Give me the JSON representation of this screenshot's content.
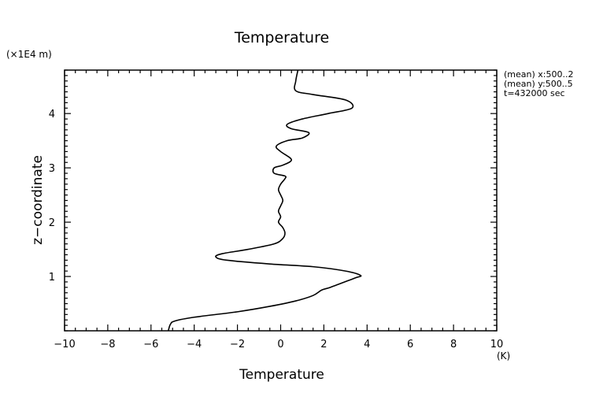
{
  "chart_data": {
    "type": "line",
    "title": "Temperature",
    "xlabel": "Temperature",
    "xunit": "(K)",
    "ylabel": "z−coordinate",
    "yunit": "(×1E4 m)",
    "xlim": [
      -10,
      10
    ],
    "ylim": [
      0,
      4.8
    ],
    "x_ticks": [
      -10,
      -8,
      -6,
      -4,
      -2,
      0,
      2,
      4,
      6,
      8,
      10
    ],
    "x_tick_labels": [
      "−10",
      "−8",
      "−6",
      "−4",
      "−2",
      "0",
      "2",
      "4",
      "6",
      "8",
      "10"
    ],
    "y_ticks": [
      1,
      2,
      3,
      4
    ],
    "y_tick_labels": [
      "1",
      "2",
      "3",
      "4"
    ],
    "grid": false,
    "annotations": [
      "(mean) x:500..2",
      "(mean) y:500..5",
      "t=432000 sec"
    ],
    "series": [
      {
        "x": [
          -5.2,
          -5.1,
          -4.9,
          -4.0,
          -2.0,
          -0.5,
          0.7,
          1.5,
          1.9,
          2.3,
          3.1,
          3.5,
          3.7,
          3.0,
          1.5,
          -0.5,
          -2.5,
          -3.0,
          -2.7,
          -1.5,
          -0.3,
          0.1,
          0.2,
          0.1,
          -0.1,
          0.0,
          -0.1,
          0.0,
          0.1,
          0.0,
          -0.1,
          0.0,
          0.2,
          0.2,
          -0.3,
          -0.3,
          0.1,
          0.5,
          0.0,
          -0.2,
          0.3,
          1.0,
          1.3,
          0.5,
          0.3,
          1.0,
          2.2,
          3.3,
          3.0,
          1.5,
          0.7,
          0.7,
          0.8
        ],
        "y": [
          0.0,
          0.12,
          0.18,
          0.25,
          0.35,
          0.45,
          0.55,
          0.65,
          0.75,
          0.8,
          0.92,
          0.98,
          1.02,
          1.1,
          1.18,
          1.23,
          1.3,
          1.36,
          1.42,
          1.5,
          1.6,
          1.7,
          1.8,
          1.9,
          2.0,
          2.1,
          2.2,
          2.3,
          2.4,
          2.5,
          2.6,
          2.7,
          2.8,
          2.85,
          2.9,
          3.0,
          3.05,
          3.15,
          3.3,
          3.4,
          3.5,
          3.55,
          3.65,
          3.72,
          3.8,
          3.9,
          4.0,
          4.1,
          4.25,
          4.35,
          4.42,
          4.6,
          4.8
        ]
      }
    ]
  }
}
